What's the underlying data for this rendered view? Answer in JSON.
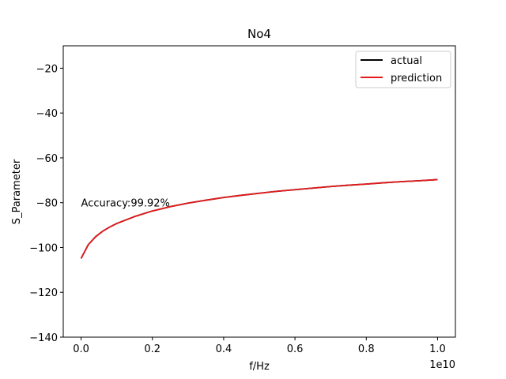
{
  "chart_data": {
    "type": "line",
    "title": "No4",
    "xlabel": "f/Hz",
    "ylabel": "S_Parameter",
    "x_offset_label": "1e10",
    "xlim": [
      -0.05,
      1.05
    ],
    "ylim": [
      -140,
      -10
    ],
    "x_ticks": [
      0.0,
      0.2,
      0.4,
      0.6,
      0.8,
      1.0
    ],
    "x_tick_labels": [
      "0.0",
      "0.2",
      "0.4",
      "0.6",
      "0.8",
      "1.0"
    ],
    "y_ticks": [
      -140,
      -120,
      -100,
      -80,
      -60,
      -40,
      -20
    ],
    "y_tick_labels": [
      "−140",
      "−120",
      "−100",
      "−80",
      "−60",
      "−40",
      "−20"
    ],
    "grid": false,
    "legend_position": "upper-right",
    "annotation": {
      "text": "Accuracy:99.92%",
      "x": 0.0,
      "y": -80
    },
    "x": [
      0.0,
      0.02,
      0.04,
      0.06,
      0.08,
      0.1,
      0.15,
      0.2,
      0.25,
      0.3,
      0.35,
      0.4,
      0.45,
      0.5,
      0.55,
      0.6,
      0.65,
      0.7,
      0.75,
      0.8,
      0.85,
      0.9,
      0.95,
      1.0
    ],
    "series": [
      {
        "name": "actual",
        "color": "#000000",
        "values": [
          -104.9,
          -98.8,
          -95.3,
          -92.8,
          -90.9,
          -89.3,
          -86.2,
          -83.7,
          -81.8,
          -80.2,
          -78.9,
          -77.7,
          -76.7,
          -75.8,
          -74.9,
          -74.2,
          -73.5,
          -72.8,
          -72.2,
          -71.7,
          -71.1,
          -70.6,
          -70.2,
          -69.7
        ]
      },
      {
        "name": "prediction",
        "color": "#e41a1c",
        "values": [
          -104.9,
          -98.8,
          -95.3,
          -92.8,
          -90.9,
          -89.3,
          -86.2,
          -83.7,
          -81.8,
          -80.2,
          -78.9,
          -77.7,
          -76.7,
          -75.8,
          -74.9,
          -74.2,
          -73.5,
          -72.8,
          -72.2,
          -71.7,
          -71.1,
          -70.6,
          -70.2,
          -69.7
        ]
      }
    ]
  }
}
